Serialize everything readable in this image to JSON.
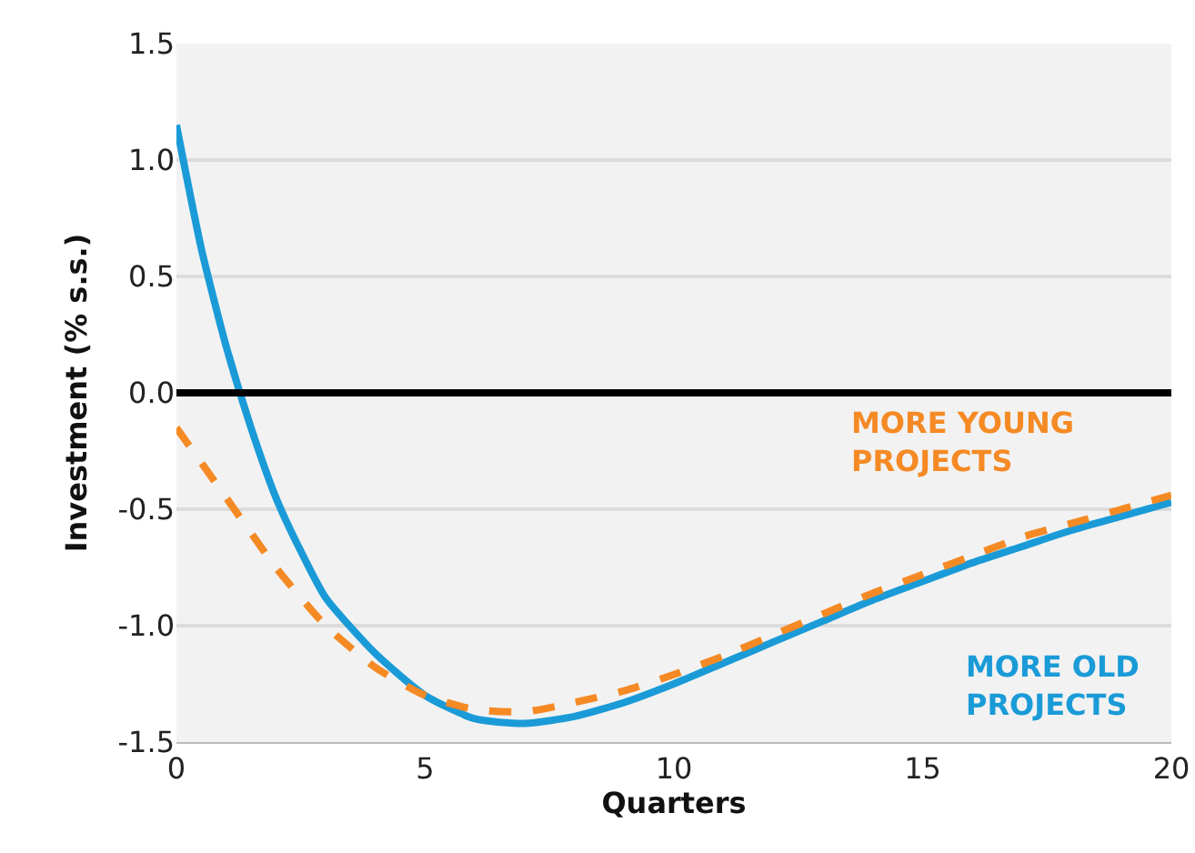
{
  "chart_data": {
    "type": "line",
    "xlabel": "Quarters",
    "ylabel": "Investment (% s.s.)",
    "xlim": [
      0,
      20
    ],
    "xticks": [
      0,
      5,
      10,
      15,
      20
    ],
    "ylim": [
      -1.5,
      1.5
    ],
    "yticks": [
      {
        "value": -1.5,
        "label": "-1.5"
      },
      {
        "value": -1,
        "label": "-1.0"
      },
      {
        "value": -0.5,
        "label": "-0.5"
      },
      {
        "value": 0,
        "label": "0.0"
      },
      {
        "value": 0.5,
        "label": "0.5"
      },
      {
        "value": 1,
        "label": "1.0"
      },
      {
        "value": 1.5,
        "label": "1.5"
      }
    ],
    "grid": "y",
    "legend": false,
    "marker": "none",
    "ref_lines": [
      {
        "axis": "y",
        "value": 0,
        "color": "#000000"
      }
    ],
    "series": [
      {
        "name": "MORE OLD PROJECTS",
        "color": "#1a9bd7",
        "line_style": "solid",
        "x": [
          0,
          0.5,
          1,
          1.5,
          2,
          2.5,
          3,
          4,
          5,
          6,
          7,
          8,
          9,
          10,
          11,
          12,
          13,
          14,
          15,
          16,
          17,
          18,
          19,
          20
        ],
        "values": [
          1.15,
          0.62,
          0.2,
          -0.15,
          -0.45,
          -0.68,
          -0.88,
          -1.12,
          -1.3,
          -1.4,
          -1.42,
          -1.39,
          -1.33,
          -1.25,
          -1.16,
          -1.07,
          -0.98,
          -0.89,
          -0.81,
          -0.73,
          -0.66,
          -0.59,
          -0.53,
          -0.47
        ]
      },
      {
        "name": "MORE YOUNG PROJECTS",
        "color": "#f58a25",
        "line_style": "dashed",
        "x": [
          0,
          1,
          2,
          3,
          4,
          5,
          6,
          7,
          8,
          9,
          10,
          11,
          12,
          13,
          14,
          15,
          16,
          17,
          18,
          19,
          20
        ],
        "values": [
          -0.15,
          -0.45,
          -0.75,
          -1.0,
          -1.18,
          -1.3,
          -1.36,
          -1.37,
          -1.33,
          -1.28,
          -1.21,
          -1.13,
          -1.04,
          -0.95,
          -0.86,
          -0.78,
          -0.7,
          -0.62,
          -0.56,
          -0.5,
          -0.44
        ]
      }
    ]
  }
}
